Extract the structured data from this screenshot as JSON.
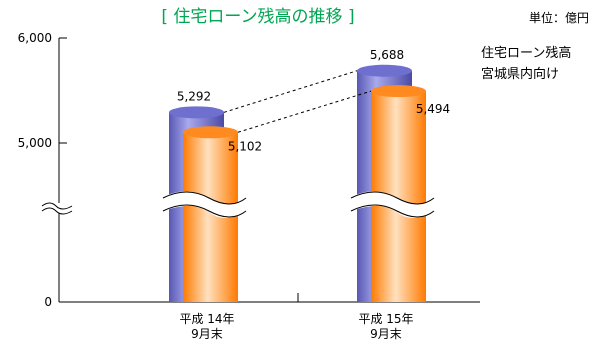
{
  "chart_data": {
    "type": "bar",
    "title": "[ 住宅ローン残高の推移 ]",
    "unit_label": "単位：億円",
    "categories": [
      "平成 14年",
      "平成 15年"
    ],
    "category_sublabels": [
      "9月末",
      "9月末"
    ],
    "series": [
      {
        "name": "住宅ローン残高",
        "values": [
          5292,
          5688
        ]
      },
      {
        "name": "宮城県内向け",
        "values": [
          5102,
          5494
        ]
      }
    ],
    "value_labels": [
      [
        "5,292",
        "5,102"
      ],
      [
        "5,688",
        "5,494"
      ]
    ],
    "y_ticks": [
      "6,000",
      "5,000",
      "0"
    ],
    "ylim": [
      0,
      6000
    ],
    "axis_break": true,
    "colors": {
      "series1": "#6f6fcf",
      "series2": "#ff8a1f",
      "title": "#00a651"
    }
  }
}
